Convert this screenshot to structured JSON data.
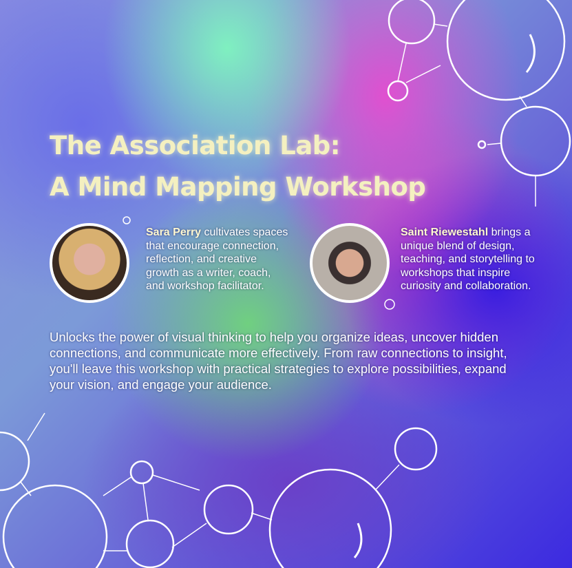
{
  "title": {
    "line1": "The Association Lab:",
    "line2": "A Mind Mapping Workshop"
  },
  "facilitators": [
    {
      "name": "Sara Perry",
      "bio": " cultivates spaces that encourage connection, reflection, and creative growth as a writer, coach, and workshop facilitator."
    },
    {
      "name": "Saint Riewestahl",
      "bio": " brings a unique blend of design, teaching, and storytelling to workshops that inspire curiosity and collaboration."
    }
  ],
  "description": "Unlocks the power of visual thinking to help you organize ideas, uncover hidden connections, and communicate more effectively. From raw connections to insight, you'll leave this workshop with practical strategies to explore possibilities, expand your vision, and engage your audience.",
  "colors": {
    "title": "#f4f0c0",
    "text": "#ffffff",
    "bubble_stroke": "#ffffff"
  }
}
